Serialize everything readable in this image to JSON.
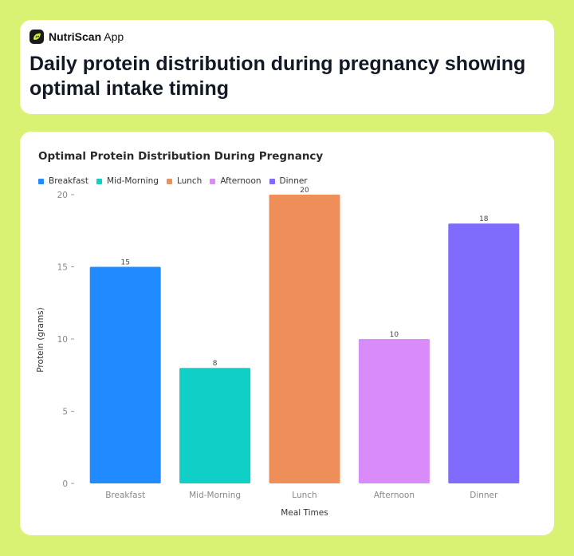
{
  "app": {
    "brand_bold": "NutriScan",
    "brand_light": " App",
    "logo_icon": "leaf-face-icon"
  },
  "header": {
    "title": "Daily protein distribution during pregnancy showing optimal intake timing"
  },
  "colors": {
    "background": "#d9f273",
    "card": "#ffffff"
  },
  "chart_data": {
    "type": "bar",
    "title": "Optimal Protein Distribution During Pregnancy",
    "xlabel": "Meal Times",
    "ylabel": "Protein (grams)",
    "categories": [
      "Breakfast",
      "Mid-Morning",
      "Lunch",
      "Afternoon",
      "Dinner"
    ],
    "values": [
      15,
      8,
      20,
      10,
      18
    ],
    "colors": [
      "#1f8bff",
      "#0fcfc7",
      "#ee8f5a",
      "#d98bfa",
      "#7f6cfc"
    ],
    "ylim": [
      0,
      20
    ],
    "yticks": [
      0,
      5,
      10,
      15,
      20
    ],
    "legend": [
      "Breakfast",
      "Mid-Morning",
      "Lunch",
      "Afternoon",
      "Dinner"
    ],
    "legend_position": "top-left",
    "grid": false,
    "data_labels": true
  }
}
